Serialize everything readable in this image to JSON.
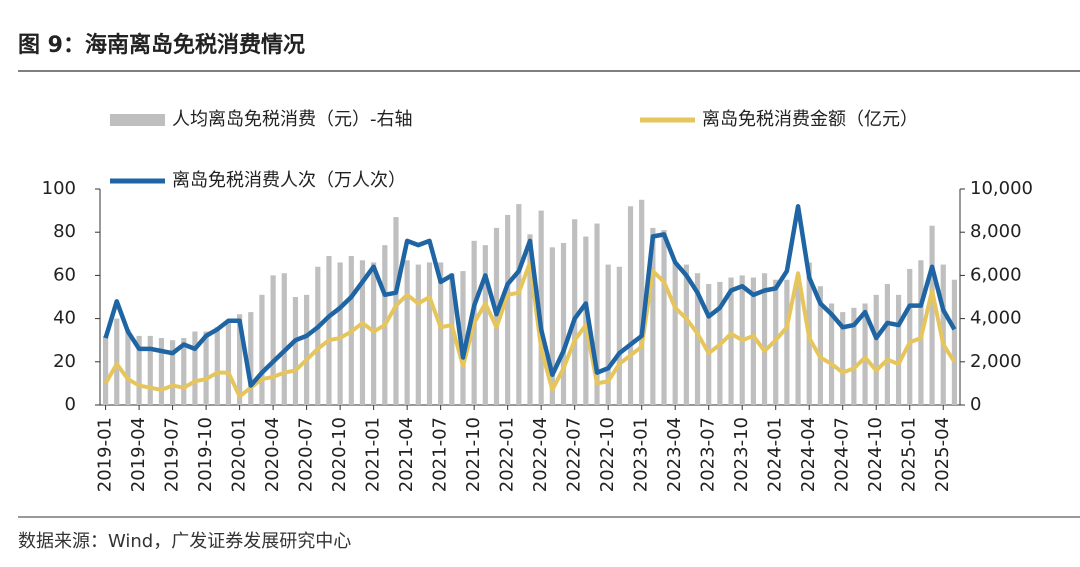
{
  "chart_data": {
    "type": "bar-line",
    "title": "图 9：海南离岛免税消费情况",
    "source": "数据来源：Wind，广发证券发展研究中心",
    "categories": [
      "2019-01",
      null,
      null,
      "2019-04",
      null,
      null,
      "2019-07",
      null,
      null,
      "2019-10",
      null,
      null,
      "2020-01",
      null,
      null,
      "2020-04",
      null,
      null,
      "2020-07",
      null,
      null,
      "2020-10",
      null,
      null,
      "2021-01",
      null,
      null,
      "2021-04",
      null,
      null,
      "2021-07",
      null,
      null,
      "2021-10",
      null,
      null,
      "2022-01",
      null,
      null,
      "2022-04",
      null,
      null,
      "2022-07",
      null,
      null,
      "2022-10",
      null,
      null,
      "2023-01",
      null,
      null,
      "2023-04",
      null,
      null,
      "2023-07",
      null,
      null,
      "2023-10",
      null,
      null,
      "2024-01",
      null,
      null,
      "2024-04",
      null,
      null,
      "2024-07",
      null,
      null,
      "2024-10",
      null,
      null,
      "2025-01",
      null,
      null,
      "2025-04",
      null
    ],
    "series": [
      {
        "name": "人均离岛免税消费（元）-右轴",
        "kind": "bar",
        "axis": "y2",
        "color": "#bfbfbf",
        "values": [
          3200,
          4000,
          3500,
          3200,
          3200,
          3100,
          3000,
          3100,
          3400,
          3400,
          3600,
          3800,
          4200,
          4300,
          5100,
          6000,
          6100,
          5000,
          5100,
          6400,
          6900,
          6600,
          6900,
          6700,
          6600,
          7400,
          8700,
          6700,
          6500,
          6600,
          6600,
          6100,
          6200,
          7600,
          7400,
          8200,
          8800,
          9300,
          7900,
          9000,
          7300,
          7500,
          8600,
          7800,
          8400,
          6500,
          6400,
          9200,
          9500,
          8200,
          8100,
          6600,
          6500,
          6100,
          5600,
          5700,
          5900,
          6000,
          5900,
          6100,
          5800,
          5800,
          6000,
          6600,
          5500,
          4700,
          4300,
          4500,
          4700,
          5100,
          5600,
          5100,
          6300,
          6700,
          8300,
          6500,
          5800
        ]
      },
      {
        "name": "离岛免税消费金额（亿元）",
        "kind": "line",
        "color": "#e6c65c",
        "values": [
          10,
          19,
          12,
          9,
          8,
          7,
          9,
          8,
          11,
          12,
          15,
          15,
          4,
          8,
          12,
          13,
          15,
          16,
          21,
          26,
          30,
          31,
          34,
          38,
          34,
          37,
          46,
          51,
          47,
          50,
          36,
          37,
          18,
          38,
          47,
          36,
          51,
          52,
          66,
          26,
          7,
          17,
          30,
          37,
          10,
          11,
          19,
          23,
          27,
          62,
          57,
          45,
          40,
          33,
          24,
          28,
          33,
          30,
          32,
          25,
          30,
          36,
          61,
          31,
          22,
          19,
          15,
          17,
          22,
          16,
          21,
          19,
          29,
          31,
          53,
          28,
          20
        ]
      },
      {
        "name": "离岛免税消费人次（万人次）",
        "kind": "line",
        "color": "#1f65a3",
        "values": [
          31,
          48,
          34,
          26,
          26,
          25,
          24,
          28,
          26,
          32,
          35,
          39,
          39,
          9,
          15,
          20,
          25,
          30,
          32,
          36,
          41,
          45,
          50,
          57,
          64,
          51,
          52,
          76,
          74,
          76,
          57,
          60,
          22,
          46,
          60,
          42,
          56,
          62,
          76,
          35,
          14,
          25,
          40,
          47,
          15,
          17,
          24,
          28,
          32,
          78,
          79,
          66,
          60,
          52,
          41,
          45,
          53,
          55,
          51,
          53,
          54,
          62,
          92,
          59,
          47,
          42,
          36,
          37,
          43,
          31,
          38,
          37,
          46,
          46,
          64,
          44,
          35
        ]
      }
    ],
    "ylim": [
      0,
      100
    ],
    "yticks": [
      0,
      20,
      40,
      60,
      80,
      100
    ],
    "y2lim": [
      0,
      10000
    ],
    "y2ticks": [
      0,
      {
        "value": 2000,
        "label": "2,000"
      },
      {
        "value": 4000,
        "label": "4,000"
      },
      {
        "value": 6000,
        "label": "6,000"
      },
      {
        "value": 8000,
        "label": "8,000"
      },
      {
        "value": 10000,
        "label": "10,000"
      }
    ]
  }
}
